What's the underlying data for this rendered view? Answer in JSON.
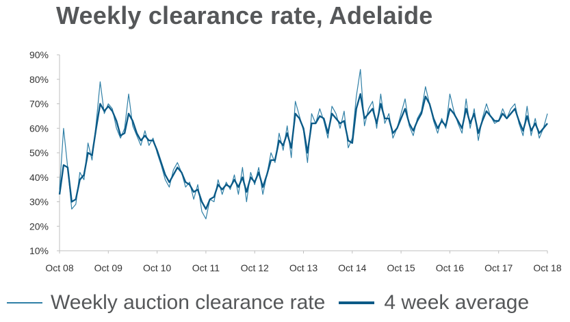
{
  "chart_data": {
    "type": "line",
    "title": "Weekly clearance rate, Adelaide",
    "xlabel": "",
    "ylabel": "",
    "x_ticks": [
      "Oct 08",
      "Oct 09",
      "Oct 10",
      "Oct 11",
      "Oct 12",
      "Oct 13",
      "Oct 14",
      "Oct 15",
      "Oct 16",
      "Oct 17",
      "Oct 18"
    ],
    "y_ticks": [
      "10%",
      "20%",
      "30%",
      "40%",
      "50%",
      "60%",
      "70%",
      "80%",
      "90%"
    ],
    "ylim": [
      10,
      90
    ],
    "y_unit": "%",
    "x_unit": "date",
    "xlim": [
      "2008-10",
      "2018-10"
    ],
    "grid": false,
    "legend_position": "bottom",
    "colors": {
      "weekly": "#2f7fa6",
      "average": "#0b5a87",
      "text": "#555759"
    },
    "series": [
      {
        "name": "Weekly auction clearance rate",
        "style": "thin",
        "x": [
          "2008-10",
          "2008-11",
          "2008-12",
          "2009-01",
          "2009-02",
          "2009-03",
          "2009-04",
          "2009-05",
          "2009-06",
          "2009-07",
          "2009-08",
          "2009-09",
          "2009-10",
          "2009-11",
          "2009-12",
          "2010-01",
          "2010-02",
          "2010-03",
          "2010-04",
          "2010-05",
          "2010-06",
          "2010-07",
          "2010-08",
          "2010-09",
          "2010-10",
          "2010-11",
          "2010-12",
          "2011-01",
          "2011-02",
          "2011-03",
          "2011-04",
          "2011-05",
          "2011-06",
          "2011-07",
          "2011-08",
          "2011-09",
          "2011-10",
          "2011-11",
          "2011-12",
          "2012-01",
          "2012-02",
          "2012-03",
          "2012-04",
          "2012-05",
          "2012-06",
          "2012-07",
          "2012-08",
          "2012-09",
          "2012-10",
          "2012-11",
          "2012-12",
          "2013-01",
          "2013-02",
          "2013-03",
          "2013-04",
          "2013-05",
          "2013-06",
          "2013-07",
          "2013-08",
          "2013-09",
          "2013-10",
          "2013-11",
          "2013-12",
          "2014-01",
          "2014-02",
          "2014-03",
          "2014-04",
          "2014-05",
          "2014-06",
          "2014-07",
          "2014-08",
          "2014-09",
          "2014-10",
          "2014-11",
          "2014-12",
          "2015-01",
          "2015-02",
          "2015-03",
          "2015-04",
          "2015-05",
          "2015-06",
          "2015-07",
          "2015-08",
          "2015-09",
          "2015-10",
          "2015-11",
          "2015-12",
          "2016-01",
          "2016-02",
          "2016-03",
          "2016-04",
          "2016-05",
          "2016-06",
          "2016-07",
          "2016-08",
          "2016-09",
          "2016-10",
          "2016-11",
          "2016-12",
          "2017-01",
          "2017-02",
          "2017-03",
          "2017-04",
          "2017-05",
          "2017-06",
          "2017-07",
          "2017-08",
          "2017-09",
          "2017-10",
          "2017-11",
          "2017-12",
          "2018-01",
          "2018-02",
          "2018-03",
          "2018-04",
          "2018-05",
          "2018-06",
          "2018-07",
          "2018-08",
          "2018-09",
          "2018-10"
        ],
        "values": [
          35,
          60,
          44,
          27,
          29,
          42,
          39,
          54,
          47,
          62,
          79,
          66,
          70,
          68,
          60,
          56,
          60,
          74,
          61,
          57,
          53,
          59,
          53,
          56,
          50,
          45,
          39,
          36,
          43,
          46,
          42,
          36,
          38,
          31,
          37,
          26,
          23,
          31,
          30,
          39,
          33,
          38,
          35,
          41,
          33,
          44,
          30,
          42,
          37,
          44,
          33,
          41,
          50,
          46,
          58,
          51,
          61,
          48,
          71,
          65,
          59,
          46,
          66,
          62,
          68,
          63,
          56,
          69,
          66,
          60,
          67,
          52,
          56,
          73,
          84,
          61,
          68,
          71,
          60,
          74,
          62,
          66,
          56,
          60,
          66,
          72,
          61,
          57,
          64,
          67,
          77,
          70,
          63,
          58,
          64,
          60,
          74,
          67,
          62,
          58,
          72,
          60,
          68,
          55,
          64,
          70,
          65,
          62,
          63,
          68,
          64,
          68,
          70,
          62,
          57,
          69,
          57,
          64,
          56,
          60,
          66
        ]
      },
      {
        "name": "4 week average",
        "style": "thick",
        "x": [
          "2008-10",
          "2008-11",
          "2008-12",
          "2009-01",
          "2009-02",
          "2009-03",
          "2009-04",
          "2009-05",
          "2009-06",
          "2009-07",
          "2009-08",
          "2009-09",
          "2009-10",
          "2009-11",
          "2009-12",
          "2010-01",
          "2010-02",
          "2010-03",
          "2010-04",
          "2010-05",
          "2010-06",
          "2010-07",
          "2010-08",
          "2010-09",
          "2010-10",
          "2010-11",
          "2010-12",
          "2011-01",
          "2011-02",
          "2011-03",
          "2011-04",
          "2011-05",
          "2011-06",
          "2011-07",
          "2011-08",
          "2011-09",
          "2011-10",
          "2011-11",
          "2011-12",
          "2012-01",
          "2012-02",
          "2012-03",
          "2012-04",
          "2012-05",
          "2012-06",
          "2012-07",
          "2012-08",
          "2012-09",
          "2012-10",
          "2012-11",
          "2012-12",
          "2013-01",
          "2013-02",
          "2013-03",
          "2013-04",
          "2013-05",
          "2013-06",
          "2013-07",
          "2013-08",
          "2013-09",
          "2013-10",
          "2013-11",
          "2013-12",
          "2014-01",
          "2014-02",
          "2014-03",
          "2014-04",
          "2014-05",
          "2014-06",
          "2014-07",
          "2014-08",
          "2014-09",
          "2014-10",
          "2014-11",
          "2014-12",
          "2015-01",
          "2015-02",
          "2015-03",
          "2015-04",
          "2015-05",
          "2015-06",
          "2015-07",
          "2015-08",
          "2015-09",
          "2015-10",
          "2015-11",
          "2015-12",
          "2016-01",
          "2016-02",
          "2016-03",
          "2016-04",
          "2016-05",
          "2016-06",
          "2016-07",
          "2016-08",
          "2016-09",
          "2016-10",
          "2016-11",
          "2016-12",
          "2017-01",
          "2017-02",
          "2017-03",
          "2017-04",
          "2017-05",
          "2017-06",
          "2017-07",
          "2017-08",
          "2017-09",
          "2017-10",
          "2017-11",
          "2017-12",
          "2018-01",
          "2018-02",
          "2018-03",
          "2018-04",
          "2018-05",
          "2018-06",
          "2018-07",
          "2018-08",
          "2018-09",
          "2018-10"
        ],
        "values": [
          33,
          45,
          44,
          30,
          31,
          39,
          41,
          50,
          49,
          60,
          70,
          67,
          69,
          67,
          63,
          57,
          58,
          66,
          63,
          58,
          55,
          57,
          55,
          55,
          51,
          46,
          41,
          38,
          41,
          44,
          42,
          38,
          37,
          34,
          35,
          30,
          27,
          31,
          32,
          37,
          35,
          37,
          36,
          39,
          36,
          40,
          34,
          40,
          38,
          42,
          36,
          41,
          47,
          47,
          55,
          53,
          58,
          52,
          66,
          64,
          60,
          50,
          62,
          62,
          65,
          64,
          58,
          66,
          64,
          62,
          63,
          55,
          54,
          68,
          74,
          64,
          66,
          68,
          62,
          70,
          64,
          64,
          58,
          60,
          64,
          68,
          62,
          59,
          63,
          66,
          73,
          70,
          64,
          60,
          63,
          61,
          68,
          66,
          63,
          60,
          68,
          62,
          66,
          58,
          63,
          67,
          65,
          63,
          63,
          66,
          64,
          66,
          68,
          63,
          59,
          65,
          59,
          62,
          58,
          60,
          62
        ]
      }
    ]
  }
}
